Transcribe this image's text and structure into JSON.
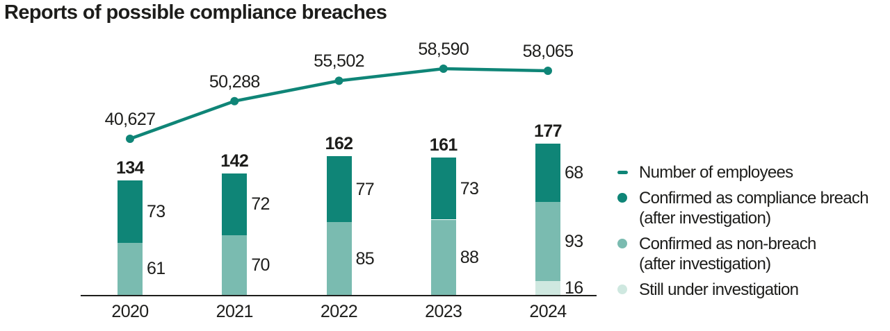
{
  "title": "Reports of possible compliance breaches",
  "colors": {
    "line": "#0f8577",
    "breach": "#0f8577",
    "non_breach": "#7abbb0",
    "under_investigation": "#cfe8e0",
    "text": "#1d1d1b",
    "axis": "#1d1d1b"
  },
  "chart_data": {
    "type": "combo (line + stacked bar)",
    "title": "Reports of possible compliance breaches",
    "categories": [
      "2020",
      "2021",
      "2022",
      "2023",
      "2024"
    ],
    "line_series": {
      "name": "Number of employees",
      "values": [
        40627,
        50288,
        55502,
        58590,
        58065
      ],
      "labels": [
        "40,627",
        "50,288",
        "55,502",
        "58,590",
        "58,065"
      ],
      "color_key": "line"
    },
    "bar_series": [
      {
        "key": "under_investigation",
        "name": "Still under investigation",
        "values": [
          0,
          0,
          0,
          0,
          16
        ],
        "color_key": "under_investigation"
      },
      {
        "key": "non_breach",
        "name": "Confirmed as non-breach (after investigation)",
        "values": [
          61,
          70,
          85,
          88,
          93
        ],
        "color_key": "non_breach"
      },
      {
        "key": "breach",
        "name": "Confirmed as compliance breach (after investigation)",
        "values": [
          73,
          72,
          77,
          73,
          68
        ],
        "color_key": "breach"
      }
    ],
    "totals": [
      "134",
      "142",
      "162",
      "161",
      "177"
    ],
    "grid": "off",
    "legend_position": "right"
  },
  "legend": {
    "items": [
      {
        "key": "employees",
        "marker": "dash",
        "color_key": "line",
        "lines": [
          "Number of employees"
        ]
      },
      {
        "key": "breach",
        "marker": "circle",
        "color_key": "breach",
        "lines": [
          "Confirmed as compliance breach",
          "(after investigation)"
        ]
      },
      {
        "key": "non-breach",
        "marker": "circle",
        "color_key": "non_breach",
        "lines": [
          "Confirmed as non-breach",
          "(after investigation)"
        ]
      },
      {
        "key": "under-investigation",
        "marker": "circle",
        "color_key": "under_investigation",
        "lines": [
          "Still under investigation"
        ]
      }
    ]
  }
}
